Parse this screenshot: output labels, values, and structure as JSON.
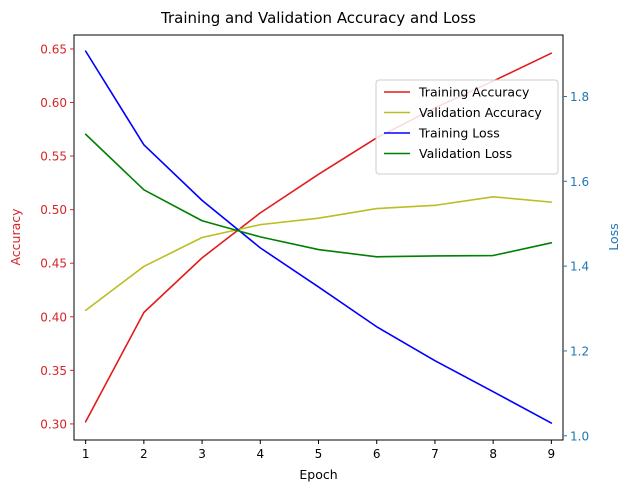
{
  "chart_data": {
    "type": "line",
    "title": "Training and Validation Accuracy and Loss",
    "xlabel": "Epoch",
    "ylabel_left": "Accuracy",
    "ylabel_right": "Loss",
    "x": [
      1,
      2,
      3,
      4,
      5,
      6,
      7,
      8,
      9
    ],
    "xlim": [
      0.8,
      9.2
    ],
    "ylim_left": [
      0.285,
      0.663
    ],
    "ylim_right": [
      0.99,
      1.945
    ],
    "left_ticks": [
      0.3,
      0.35,
      0.4,
      0.45,
      0.5,
      0.55,
      0.6,
      0.65
    ],
    "left_tick_labels": [
      "0.30",
      "0.35",
      "0.40",
      "0.45",
      "0.50",
      "0.55",
      "0.60",
      "0.65"
    ],
    "right_ticks": [
      1.0,
      1.2,
      1.4,
      1.6,
      1.8
    ],
    "right_tick_labels": [
      "1.0",
      "1.2",
      "1.4",
      "1.6",
      "1.8"
    ],
    "x_tick_labels": [
      "1",
      "2",
      "3",
      "4",
      "5",
      "6",
      "7",
      "8",
      "9"
    ],
    "left_axis_color": "#d62728",
    "right_axis_color": "#1f77b4",
    "legend_position": "upper-right",
    "grid": false,
    "series": [
      {
        "name": "Training Accuracy",
        "axis": "left",
        "color": "#e41a1c",
        "values": [
          0.302,
          0.404,
          0.455,
          0.497,
          0.533,
          0.567,
          0.595,
          0.62,
          0.646
        ]
      },
      {
        "name": "Validation Accuracy",
        "axis": "left",
        "color": "#bcbd22",
        "values": [
          0.406,
          0.447,
          0.474,
          0.486,
          0.492,
          0.501,
          0.504,
          0.512,
          0.507
        ]
      },
      {
        "name": "Training Loss",
        "axis": "right",
        "color": "#0000ff",
        "values": [
          1.907,
          1.686,
          1.555,
          1.443,
          1.351,
          1.257,
          1.177,
          1.104,
          1.03
        ]
      },
      {
        "name": "Validation Loss",
        "axis": "right",
        "color": "#008000",
        "values": [
          1.711,
          1.58,
          1.507,
          1.469,
          1.439,
          1.422,
          1.424,
          1.425,
          1.455
        ]
      }
    ]
  }
}
